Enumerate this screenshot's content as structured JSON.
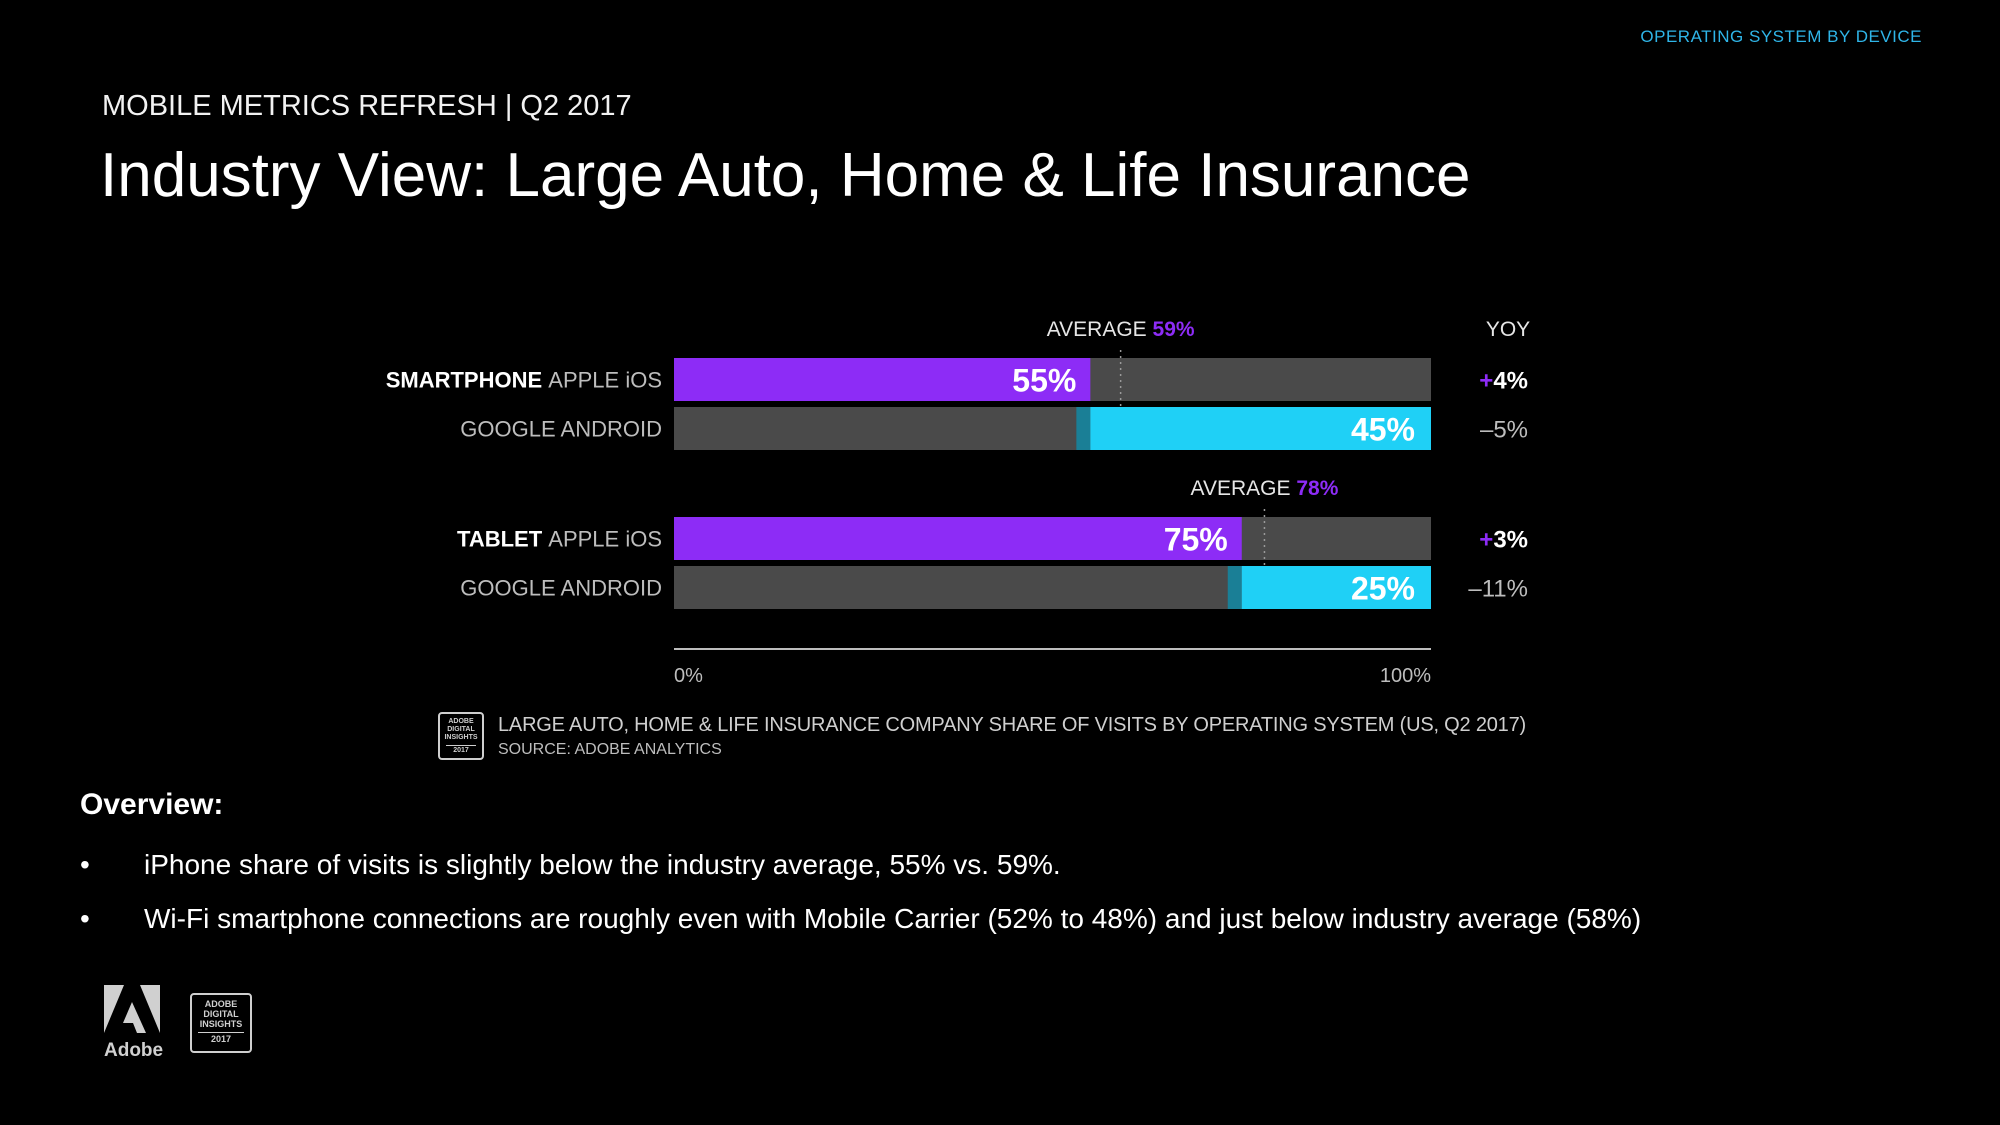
{
  "header": {
    "corner_label": "OPERATING SYSTEM BY DEVICE",
    "subtitle": "MOBILE METRICS REFRESH | Q2 2017",
    "title": "Industry View: Large Auto, Home & Life Insurance"
  },
  "chart_data": {
    "type": "bar",
    "orientation": "horizontal-stacked-100",
    "xlim": [
      0,
      100
    ],
    "x_tick_labels": [
      "0%",
      "100%"
    ],
    "yoy_header": "YOY",
    "groups": [
      {
        "device": "SMARTPHONE",
        "average_label": "AVERAGE",
        "average_value": 59,
        "average_text": "59%",
        "rows": [
          {
            "os": "APPLE iOS",
            "value": 55,
            "value_label": "55%",
            "color": "#8d2cf6",
            "yoy": "+4%",
            "yoy_sign": "+",
            "yoy_num": "4%"
          },
          {
            "os": "GOOGLE ANDROID",
            "value": 45,
            "value_label": "45%",
            "color": "#1fd0f6",
            "yoy": "-5%",
            "yoy_sign": "-",
            "yoy_num": "5%"
          }
        ]
      },
      {
        "device": "TABLET",
        "average_label": "AVERAGE",
        "average_value": 78,
        "average_text": "78%",
        "rows": [
          {
            "os": "APPLE iOS",
            "value": 75,
            "value_label": "75%",
            "color": "#8d2cf6",
            "yoy": "+3%",
            "yoy_sign": "+",
            "yoy_num": "3%"
          },
          {
            "os": "GOOGLE ANDROID",
            "value": 25,
            "value_label": "25%",
            "color": "#1fd0f6",
            "yoy": "-11%",
            "yoy_sign": "-",
            "yoy_num": "11%"
          }
        ]
      }
    ],
    "caption": "LARGE AUTO, HOME & LIFE INSURANCE COMPANY SHARE OF VISITS BY OPERATING SYSTEM (US, Q2 2017)",
    "source": "SOURCE: ADOBE ANALYTICS"
  },
  "colors": {
    "ios": "#8d2cf6",
    "android": "#1fd0f6",
    "track": "#4a4a4a",
    "average_accent": "#8d2cf6",
    "corner_text": "#2fb5e8"
  },
  "badge": {
    "line1": "ADOBE",
    "line2": "DIGITAL",
    "line3": "INSIGHTS",
    "year": "2017"
  },
  "overview": {
    "heading": "Overview:",
    "bullets": [
      "iPhone share of visits is slightly below the industry average, 55% vs. 59%.",
      "Wi-Fi smartphone connections are roughly even with Mobile Carrier (52% to 48%) and just below industry average (58%)"
    ]
  },
  "footer": {
    "logo_word": "Adobe"
  }
}
